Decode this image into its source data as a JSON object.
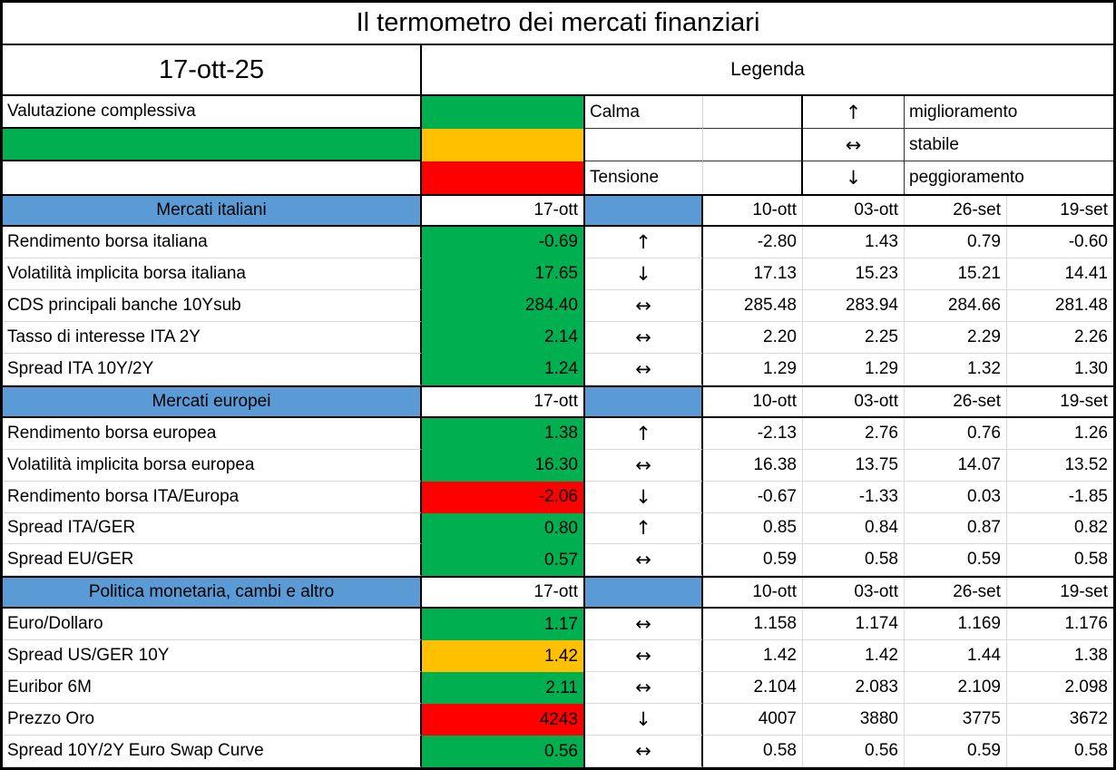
{
  "title": "Il termometro dei mercati finanziari",
  "date": "17-ott-25",
  "legend": {
    "title": "Legenda",
    "overall_label": "Valutazione complessiva",
    "overall_color": "#00B050",
    "levels": [
      {
        "color": "#00B050",
        "label": "Calma"
      },
      {
        "color": "#FFC000",
        "label": ""
      },
      {
        "color": "#FF0000",
        "label": "Tensione"
      }
    ],
    "arrows": [
      {
        "symbol": "↑",
        "meaning": "miglioramento"
      },
      {
        "symbol": "↔",
        "meaning": "stabile"
      },
      {
        "symbol": "↓",
        "meaning": "peggioramento"
      }
    ]
  },
  "colors": {
    "calm_green": "#00B050",
    "warning_amber": "#FFC000",
    "tension_red": "#FF0000",
    "header_blue": "#5B9BD5",
    "gridline_gray": "#D9D9D9"
  },
  "columns": {
    "current": "17-ott",
    "history": [
      "10-ott",
      "03-ott",
      "26-set",
      "19-set"
    ]
  },
  "sections": [
    {
      "name": "Mercati italiani",
      "rows": [
        {
          "label": "Rendimento borsa italiana",
          "value": "-0.69",
          "status_color": "#00B050",
          "trend": "↑",
          "history": [
            "-2.80",
            "1.43",
            "0.79",
            "-0.60"
          ]
        },
        {
          "label": "Volatilità implicita borsa italiana",
          "value": "17.65",
          "status_color": "#00B050",
          "trend": "↓",
          "history": [
            "17.13",
            "15.23",
            "15.21",
            "14.41"
          ]
        },
        {
          "label": "CDS principali banche 10Ysub",
          "value": "284.40",
          "status_color": "#00B050",
          "trend": "↔",
          "history": [
            "285.48",
            "283.94",
            "284.66",
            "281.48"
          ]
        },
        {
          "label": "Tasso di interesse ITA 2Y",
          "value": "2.14",
          "status_color": "#00B050",
          "trend": "↔",
          "history": [
            "2.20",
            "2.25",
            "2.29",
            "2.26"
          ]
        },
        {
          "label": "Spread ITA 10Y/2Y",
          "value": "1.24",
          "status_color": "#00B050",
          "trend": "↔",
          "history": [
            "1.29",
            "1.29",
            "1.32",
            "1.30"
          ]
        }
      ]
    },
    {
      "name": "Mercati europei",
      "rows": [
        {
          "label": "Rendimento borsa europea",
          "value": "1.38",
          "status_color": "#00B050",
          "trend": "↑",
          "history": [
            "-2.13",
            "2.76",
            "0.76",
            "1.26"
          ]
        },
        {
          "label": "Volatilità implicita borsa europea",
          "value": "16.30",
          "status_color": "#00B050",
          "trend": "↔",
          "history": [
            "16.38",
            "13.75",
            "14.07",
            "13.52"
          ]
        },
        {
          "label": "Rendimento borsa ITA/Europa",
          "value": "-2.06",
          "status_color": "#FF0000",
          "trend": "↓",
          "history": [
            "-0.67",
            "-1.33",
            "0.03",
            "-1.85"
          ]
        },
        {
          "label": "Spread ITA/GER",
          "value": "0.80",
          "status_color": "#00B050",
          "trend": "↑",
          "history": [
            "0.85",
            "0.84",
            "0.87",
            "0.82"
          ]
        },
        {
          "label": "Spread EU/GER",
          "value": "0.57",
          "status_color": "#00B050",
          "trend": "↔",
          "history": [
            "0.59",
            "0.58",
            "0.59",
            "0.58"
          ]
        }
      ]
    },
    {
      "name": "Politica monetaria, cambi e altro",
      "rows": [
        {
          "label": "Euro/Dollaro",
          "value": "1.17",
          "status_color": "#00B050",
          "trend": "↔",
          "history": [
            "1.158",
            "1.174",
            "1.169",
            "1.176"
          ]
        },
        {
          "label": "Spread US/GER 10Y",
          "value": "1.42",
          "status_color": "#FFC000",
          "trend": "↔",
          "history": [
            "1.42",
            "1.42",
            "1.44",
            "1.38"
          ]
        },
        {
          "label": "Euribor 6M",
          "value": "2.11",
          "status_color": "#00B050",
          "trend": "↔",
          "history": [
            "2.104",
            "2.083",
            "2.109",
            "2.098"
          ]
        },
        {
          "label": "Prezzo Oro",
          "value": "4243",
          "status_color": "#FF0000",
          "trend": "↓",
          "history": [
            "4007",
            "3880",
            "3775",
            "3672"
          ]
        },
        {
          "label": "Spread 10Y/2Y Euro Swap Curve",
          "value": "0.56",
          "status_color": "#00B050",
          "trend": "↔",
          "history": [
            "0.58",
            "0.56",
            "0.59",
            "0.58"
          ]
        }
      ]
    }
  ]
}
